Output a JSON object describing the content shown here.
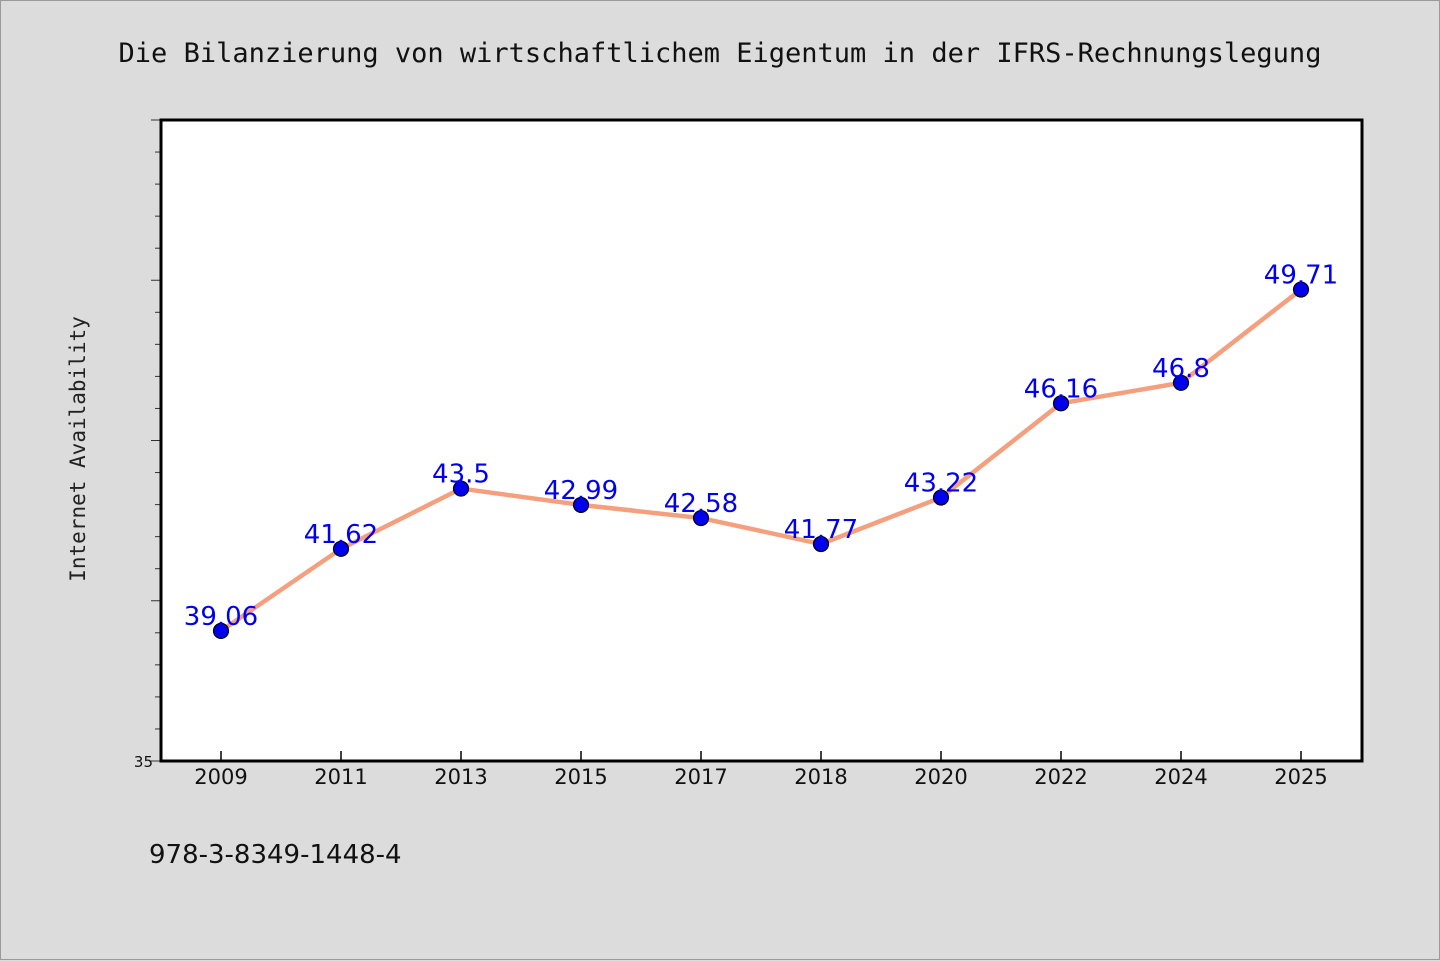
{
  "chart_data": {
    "type": "line",
    "title": "Die Bilanzierung von wirtschaftlichem Eigentum in der IFRS-Rechnungslegung",
    "xlabel": "",
    "ylabel": "Internet Availability",
    "categories": [
      "2009",
      "2011",
      "2013",
      "2015",
      "2017",
      "2018",
      "2020",
      "2022",
      "2024",
      "2025"
    ],
    "series": [
      {
        "values": [
          39.06,
          41.62,
          43.5,
          42.99,
          42.58,
          41.77,
          43.22,
          46.16,
          46.8,
          49.71
        ],
        "labels": [
          "39.06",
          "41.62",
          "43.5",
          "42.99",
          "42.58",
          "41.77",
          "43.22",
          "46.16",
          "46.8",
          "49.71"
        ]
      }
    ],
    "ylim": [
      35,
      55
    ],
    "y_tick_labels": [
      "35"
    ],
    "grid": false,
    "legend": "none",
    "colors": {
      "line": "#f4a07e",
      "marker": "#0000ee",
      "data_label": "#0000ee",
      "plot_background": "#ffffff",
      "page_background": "#dcdcdc"
    }
  },
  "footer": {
    "isbn": "978-3-8349-1448-4"
  }
}
